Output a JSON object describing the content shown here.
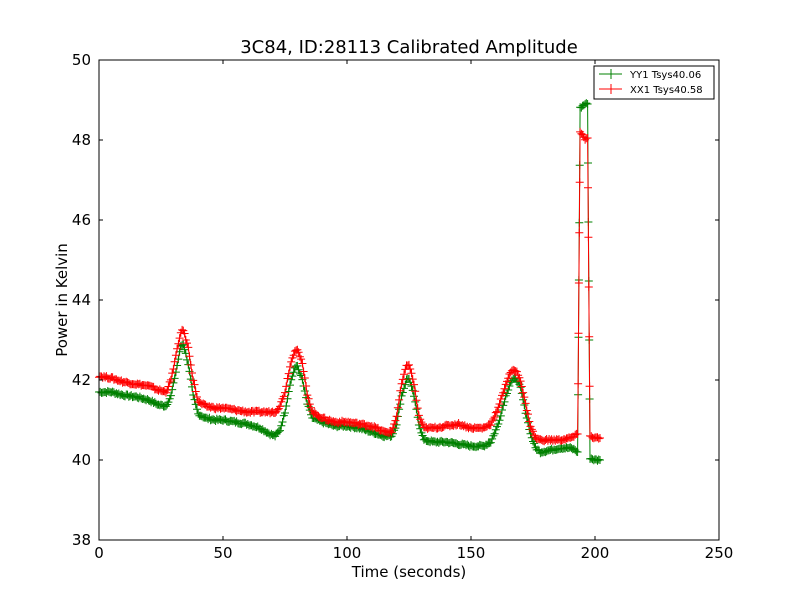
{
  "chart_data": {
    "type": "line",
    "title": "3C84, ID:28113 Calibrated Amplitude",
    "xlabel": "Time (seconds)",
    "ylabel": "Power in Kelvin",
    "xlim": [
      0,
      250
    ],
    "ylim": [
      38,
      50
    ],
    "xticks": [
      0,
      50,
      100,
      150,
      200,
      250
    ],
    "yticks": [
      38,
      40,
      42,
      44,
      46,
      48,
      50
    ],
    "grid": false,
    "legend_position": "top-right",
    "marker": "plus",
    "series": [
      {
        "name": "YY1 Tsys40.06",
        "color": "#008000",
        "points": [
          [
            0,
            41.7
          ],
          [
            5,
            41.7
          ],
          [
            10,
            41.62
          ],
          [
            15,
            41.58
          ],
          [
            20,
            41.5
          ],
          [
            24,
            41.38
          ],
          [
            27,
            41.35
          ],
          [
            29,
            41.6
          ],
          [
            31,
            42.2
          ],
          [
            33,
            42.85
          ],
          [
            34,
            42.9
          ],
          [
            36,
            42.4
          ],
          [
            38,
            41.6
          ],
          [
            40,
            41.15
          ],
          [
            43,
            41.05
          ],
          [
            47,
            41.0
          ],
          [
            50,
            41.0
          ],
          [
            55,
            40.95
          ],
          [
            60,
            40.9
          ],
          [
            65,
            40.8
          ],
          [
            69,
            40.65
          ],
          [
            71,
            40.6
          ],
          [
            73,
            40.75
          ],
          [
            75,
            41.2
          ],
          [
            77,
            41.9
          ],
          [
            79,
            42.3
          ],
          [
            80,
            42.35
          ],
          [
            82,
            42.0
          ],
          [
            84,
            41.4
          ],
          [
            86,
            41.05
          ],
          [
            90,
            40.95
          ],
          [
            95,
            40.85
          ],
          [
            100,
            40.85
          ],
          [
            105,
            40.8
          ],
          [
            110,
            40.7
          ],
          [
            115,
            40.6
          ],
          [
            118,
            40.6
          ],
          [
            120,
            40.9
          ],
          [
            122,
            41.6
          ],
          [
            124,
            42.0
          ],
          [
            125,
            42.05
          ],
          [
            127,
            41.6
          ],
          [
            129,
            40.9
          ],
          [
            131,
            40.5
          ],
          [
            135,
            40.45
          ],
          [
            140,
            40.45
          ],
          [
            145,
            40.4
          ],
          [
            150,
            40.35
          ],
          [
            155,
            40.35
          ],
          [
            158,
            40.45
          ],
          [
            161,
            40.9
          ],
          [
            164,
            41.6
          ],
          [
            166,
            41.95
          ],
          [
            168,
            42.05
          ],
          [
            170,
            41.8
          ],
          [
            172,
            41.2
          ],
          [
            174,
            40.65
          ],
          [
            176,
            40.3
          ],
          [
            178,
            40.2
          ],
          [
            182,
            40.25
          ],
          [
            186,
            40.3
          ],
          [
            190,
            40.3
          ],
          [
            192,
            40.25
          ],
          [
            193,
            40.2
          ],
          [
            194,
            48.8
          ],
          [
            195,
            48.85
          ],
          [
            196,
            48.9
          ],
          [
            197,
            48.9
          ],
          [
            198,
            40.05
          ],
          [
            200,
            40.0
          ],
          [
            202,
            40.0
          ]
        ]
      },
      {
        "name": "XX1 Tsys40.58",
        "color": "#ff0000",
        "points": [
          [
            0,
            42.1
          ],
          [
            5,
            42.05
          ],
          [
            10,
            41.95
          ],
          [
            15,
            41.9
          ],
          [
            20,
            41.85
          ],
          [
            24,
            41.75
          ],
          [
            27,
            41.7
          ],
          [
            29,
            42.0
          ],
          [
            31,
            42.6
          ],
          [
            33,
            43.2
          ],
          [
            34,
            43.25
          ],
          [
            36,
            42.8
          ],
          [
            38,
            42.0
          ],
          [
            40,
            41.45
          ],
          [
            43,
            41.35
          ],
          [
            47,
            41.3
          ],
          [
            50,
            41.3
          ],
          [
            55,
            41.25
          ],
          [
            60,
            41.2
          ],
          [
            65,
            41.2
          ],
          [
            69,
            41.2
          ],
          [
            71,
            41.2
          ],
          [
            73,
            41.35
          ],
          [
            75,
            41.7
          ],
          [
            77,
            42.35
          ],
          [
            79,
            42.75
          ],
          [
            80,
            42.78
          ],
          [
            82,
            42.4
          ],
          [
            84,
            41.65
          ],
          [
            86,
            41.2
          ],
          [
            90,
            41.05
          ],
          [
            95,
            40.95
          ],
          [
            100,
            40.95
          ],
          [
            105,
            40.9
          ],
          [
            110,
            40.85
          ],
          [
            115,
            40.7
          ],
          [
            118,
            40.7
          ],
          [
            120,
            41.1
          ],
          [
            122,
            41.9
          ],
          [
            124,
            42.35
          ],
          [
            125,
            42.4
          ],
          [
            127,
            41.9
          ],
          [
            129,
            41.1
          ],
          [
            131,
            40.8
          ],
          [
            135,
            40.8
          ],
          [
            140,
            40.85
          ],
          [
            145,
            40.9
          ],
          [
            150,
            40.8
          ],
          [
            155,
            40.8
          ],
          [
            158,
            40.9
          ],
          [
            161,
            41.3
          ],
          [
            164,
            41.9
          ],
          [
            166,
            42.2
          ],
          [
            168,
            42.25
          ],
          [
            170,
            42.0
          ],
          [
            172,
            41.4
          ],
          [
            174,
            40.85
          ],
          [
            176,
            40.55
          ],
          [
            178,
            40.5
          ],
          [
            182,
            40.5
          ],
          [
            186,
            40.5
          ],
          [
            190,
            40.55
          ],
          [
            192,
            40.6
          ],
          [
            193,
            40.65
          ],
          [
            194,
            48.2
          ],
          [
            195,
            48.15
          ],
          [
            196,
            48.0
          ],
          [
            197,
            48.05
          ],
          [
            198,
            40.6
          ],
          [
            200,
            40.55
          ],
          [
            202,
            40.55
          ]
        ]
      }
    ]
  }
}
